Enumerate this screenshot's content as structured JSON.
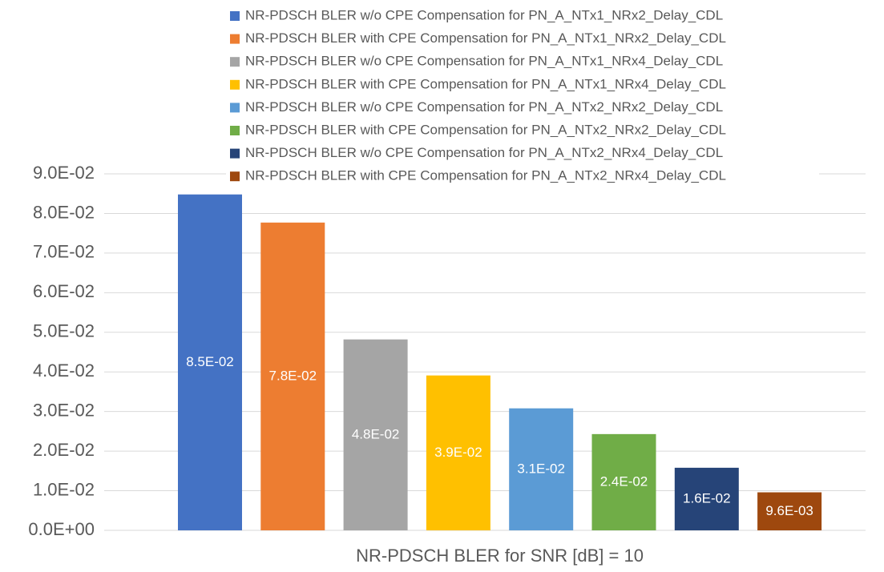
{
  "chart_data": {
    "type": "bar",
    "categories": [
      "NR-PDSCH BLER for SNR [dB] = 10"
    ],
    "series": [
      {
        "name": "NR-PDSCH BLER w/o CPE Compensation for PN_A_NTx1_NRx2_Delay_CDL",
        "color": "#4472c4",
        "values": [
          0.0848
        ],
        "value_labels": [
          "8.5E-02"
        ]
      },
      {
        "name": "NR-PDSCH BLER with CPE Compensation for PN_A_NTx1_NRx2_Delay_CDL",
        "color": "#ed7d31",
        "values": [
          0.0777
        ],
        "value_labels": [
          "7.8E-02"
        ]
      },
      {
        "name": "NR-PDSCH BLER w/o CPE Compensation for PN_A_NTx1_NRx4_Delay_CDL",
        "color": "#a5a5a5",
        "values": [
          0.0482
        ],
        "value_labels": [
          "4.8E-02"
        ]
      },
      {
        "name": "NR-PDSCH BLER with CPE Compensation for PN_A_NTx1_NRx4_Delay_CDL",
        "color": "#ffc000",
        "values": [
          0.0391
        ],
        "value_labels": [
          "3.9E-02"
        ]
      },
      {
        "name": "NR-PDSCH BLER w/o CPE Compensation for PN_A_NTx2_NRx2_Delay_CDL",
        "color": "#5b9bd5",
        "values": [
          0.0308
        ],
        "value_labels": [
          "3.1E-02"
        ]
      },
      {
        "name": "NR-PDSCH BLER with CPE Compensation for PN_A_NTx2_NRx2_Delay_CDL",
        "color": "#70ad47",
        "values": [
          0.0243
        ],
        "value_labels": [
          "2.4E-02"
        ]
      },
      {
        "name": "NR-PDSCH BLER w/o CPE Compensation for PN_A_NTx2_NRx4_Delay_CDL",
        "color": "#264478",
        "values": [
          0.0158
        ],
        "value_labels": [
          "1.6E-02"
        ]
      },
      {
        "name": "NR-PDSCH BLER with CPE Compensation for PN_A_NTx2_NRx4_Delay_CDL",
        "color": "#9e480e",
        "values": [
          0.0096
        ],
        "value_labels": [
          "9.6E-03"
        ]
      }
    ],
    "ylim": [
      0,
      0.09
    ],
    "yticks": [
      {
        "value": 0,
        "label": "0.0E+00"
      },
      {
        "value": 0.01,
        "label": "1.0E-02"
      },
      {
        "value": 0.02,
        "label": "2.0E-02"
      },
      {
        "value": 0.03,
        "label": "3.0E-02"
      },
      {
        "value": 0.04,
        "label": "4.0E-02"
      },
      {
        "value": 0.05,
        "label": "5.0E-02"
      },
      {
        "value": 0.06,
        "label": "6.0E-02"
      },
      {
        "value": 0.07,
        "label": "7.0E-02"
      },
      {
        "value": 0.08,
        "label": "8.0E-02"
      },
      {
        "value": 0.09,
        "label": "9.0E-02"
      }
    ],
    "grid": true,
    "legend": "top"
  }
}
